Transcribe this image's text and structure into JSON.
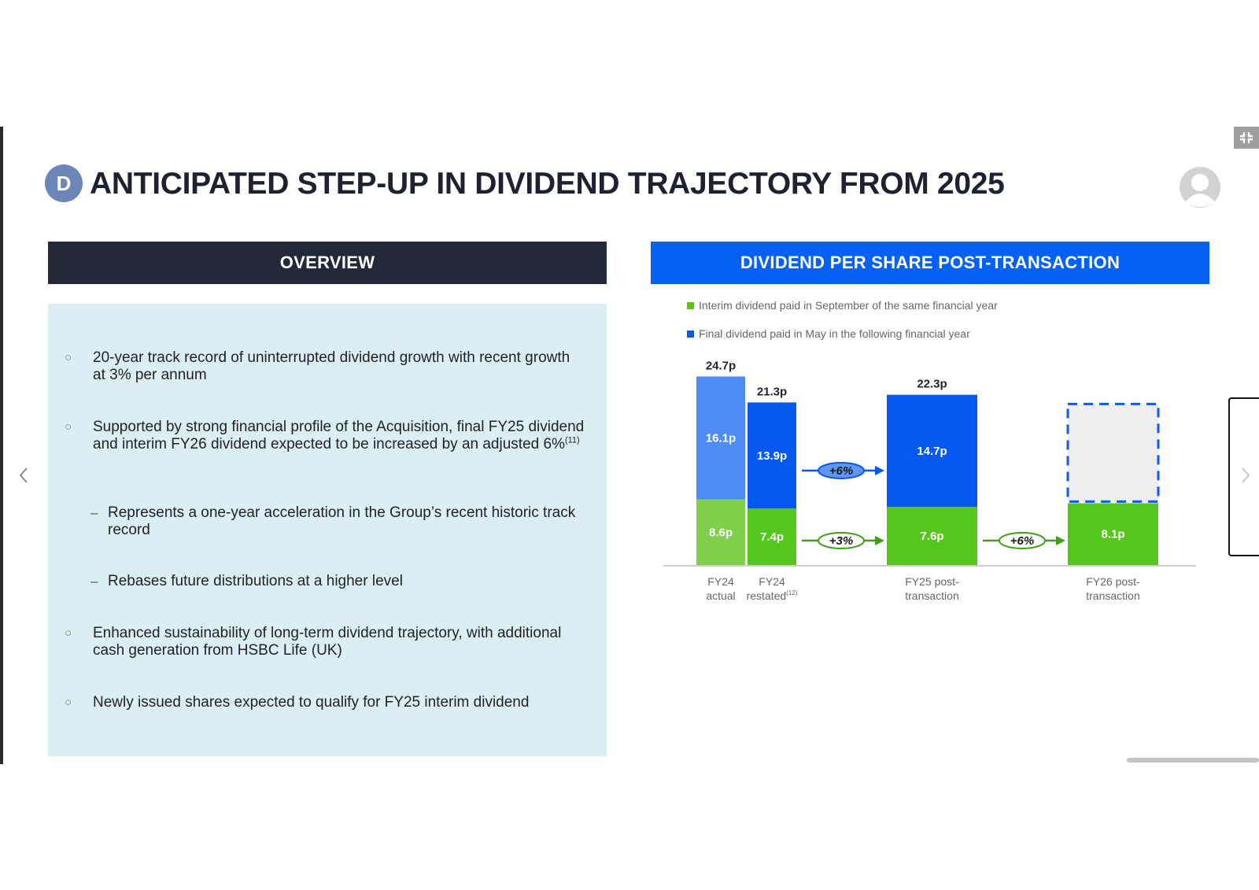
{
  "slide": {
    "badge_letter": "D",
    "title": "ANTICIPATED STEP-UP IN DIVIDEND TRAJECTORY FROM 2025"
  },
  "overview": {
    "header": "OVERVIEW",
    "bullets": [
      {
        "text": "20-year track record of uninterrupted dividend growth with recent growth at 3% per annum"
      },
      {
        "text": "Supported by strong financial profile of the Acquisition, final FY25 dividend and interim FY26 dividend expected to be increased by an adjusted 6%",
        "sup": "(11)"
      },
      {
        "text": "Represents a one-year acceleration in the Group’s recent historic track record"
      },
      {
        "text": "Rebases future distributions at a higher level"
      },
      {
        "text": "Enhanced sustainability of long-term dividend trajectory, with additional cash generation from HSBC Life (UK)"
      },
      {
        "text": "Newly issued shares expected to qualify for FY25 interim dividend"
      }
    ],
    "bullet_marker": "○",
    "sub_marker": "–"
  },
  "chart_data": {
    "header": "DIVIDEND PER SHARE POST-TRANSACTION",
    "type": "bar",
    "stacked": true,
    "categories": [
      "FY24 actual",
      "FY24 restated",
      "FY25 post-transaction",
      "FY26 post-transaction"
    ],
    "category_labels": [
      {
        "lines": [
          "FY24",
          "actual"
        ],
        "sup": ""
      },
      {
        "lines": [
          "FY24",
          "restated"
        ],
        "sup": "(12)"
      },
      {
        "lines": [
          "FY25 post-",
          "transaction"
        ],
        "sup": ""
      },
      {
        "lines": [
          "FY26 post-",
          "transaction"
        ],
        "sup": ""
      }
    ],
    "series": [
      {
        "name": "Interim dividend paid in September of the same financial year",
        "values": [
          8.6,
          7.4,
          7.6,
          8.1
        ],
        "labels": [
          "8.6p",
          "7.4p",
          "7.6p",
          "8.1p"
        ]
      },
      {
        "name": "Final dividend paid in May in the following financial year",
        "values": [
          16.1,
          13.9,
          14.7,
          null
        ],
        "labels": [
          "16.1p",
          "13.9p",
          "14.7p",
          ""
        ]
      }
    ],
    "totals": [
      "24.7p",
      "21.3p",
      "22.3p",
      ""
    ],
    "growth_annotations": [
      {
        "label": "+6%",
        "series": "final",
        "from": "FY24 restated",
        "to": "FY25 post-transaction"
      },
      {
        "label": "+3%",
        "series": "interim",
        "from": "FY24 restated",
        "to": "FY25 post-transaction"
      },
      {
        "label": "+6%",
        "series": "interim",
        "from": "FY25 post-transaction",
        "to": "FY26 post-transaction"
      }
    ],
    "placeholder_bar": "FY26 post-transaction final dividend (dashed, not yet shown)",
    "ylim": [
      0,
      28
    ],
    "grid": false,
    "legend_position": "top-left",
    "colors": {
      "interim": "#55c71c",
      "interim_light": "#7fd14b",
      "final": "#0558f0",
      "final_light": "#4d8df5",
      "placeholder_fill": "#eeeeee",
      "placeholder_border": "#0a5bef"
    }
  },
  "icons": {
    "avatar": "avatar-icon",
    "fullscreen": "exit-fullscreen-icon",
    "nav_prev": "chevron-left-icon",
    "nav_next": "chevron-right-icon"
  }
}
